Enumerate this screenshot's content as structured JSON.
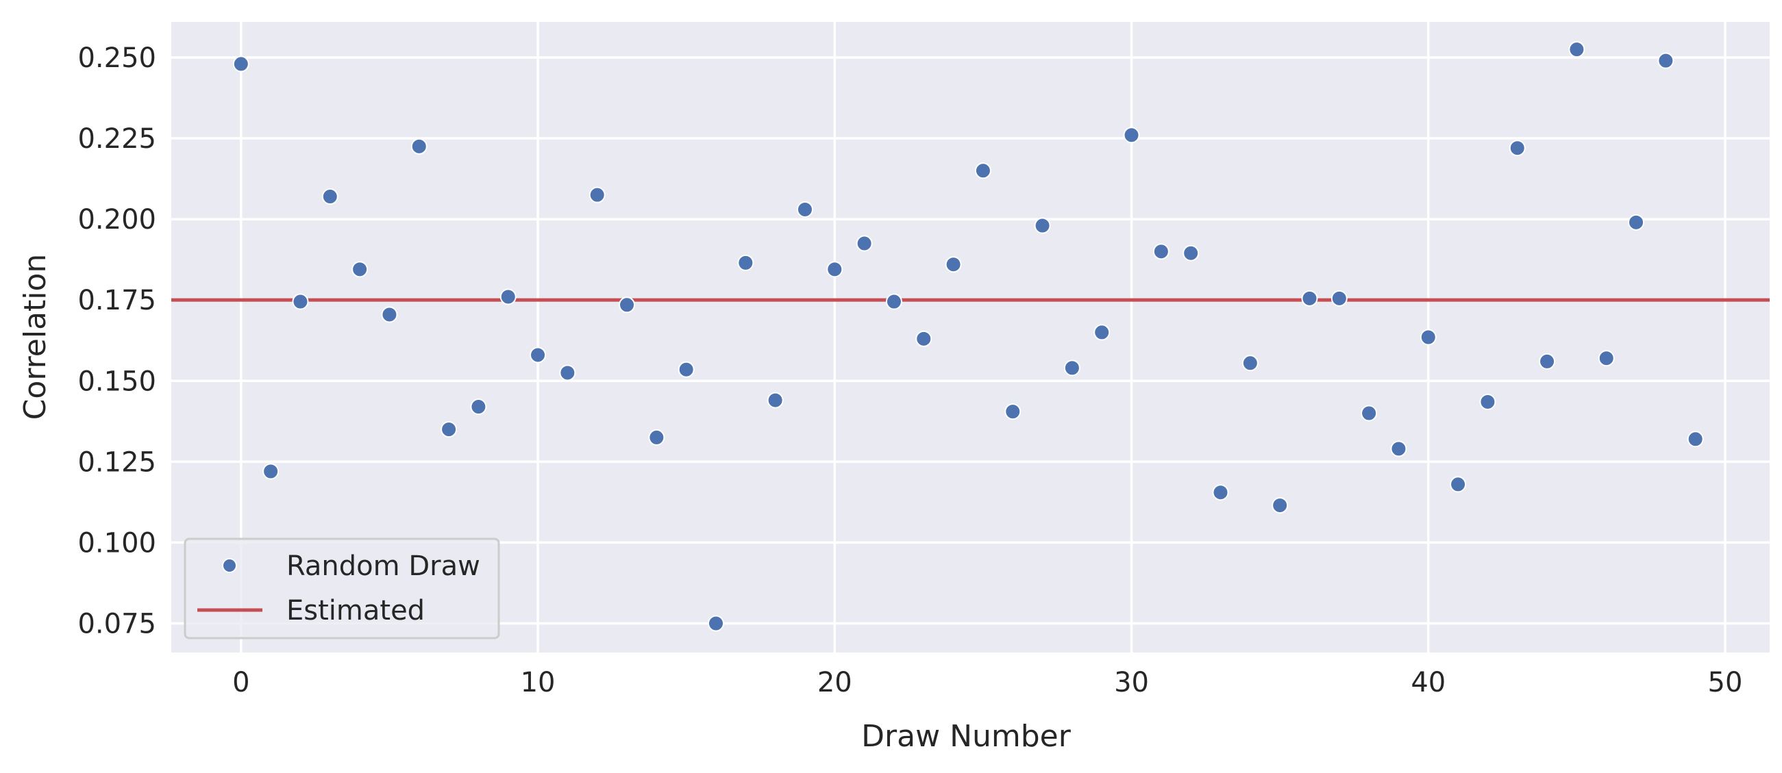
{
  "chart_data": {
    "type": "scatter",
    "title": "",
    "xlabel": "Draw Number",
    "ylabel": "Correlation",
    "xlim": [
      -2.35,
      51.5
    ],
    "ylim": [
      0.066,
      0.261
    ],
    "xticks": [
      0,
      10,
      20,
      30,
      40,
      50
    ],
    "xtick_labels": [
      "0",
      "10",
      "20",
      "30",
      "40",
      "50"
    ],
    "yticks": [
      0.075,
      0.1,
      0.125,
      0.15,
      0.175,
      0.2,
      0.225,
      0.25
    ],
    "ytick_labels": [
      "0.075",
      "0.100",
      "0.125",
      "0.150",
      "0.175",
      "0.200",
      "0.225",
      "0.250"
    ],
    "grid": true,
    "legend_position": "lower-left",
    "series": [
      {
        "name": "Random Draw",
        "kind": "scatter",
        "color": "#4c72b0",
        "x": [
          0,
          1,
          2,
          3,
          4,
          5,
          6,
          7,
          8,
          9,
          10,
          11,
          12,
          13,
          14,
          15,
          16,
          17,
          18,
          19,
          20,
          21,
          22,
          23,
          24,
          25,
          26,
          27,
          28,
          29,
          30,
          31,
          32,
          33,
          34,
          35,
          36,
          37,
          38,
          39,
          40,
          41,
          42,
          43,
          44,
          45,
          46,
          47,
          48,
          49
        ],
        "y": [
          0.248,
          0.122,
          0.1745,
          0.207,
          0.1845,
          0.1705,
          0.2225,
          0.135,
          0.142,
          0.176,
          0.158,
          0.1525,
          0.2075,
          0.1735,
          0.1325,
          0.1535,
          0.075,
          0.1865,
          0.144,
          0.203,
          0.1845,
          0.1925,
          0.1745,
          0.163,
          0.186,
          0.215,
          0.1405,
          0.198,
          0.154,
          0.165,
          0.226,
          0.19,
          0.1895,
          0.1155,
          0.1555,
          0.1115,
          0.1755,
          0.1755,
          0.14,
          0.129,
          0.1635,
          0.118,
          0.1435,
          0.222,
          0.156,
          0.2525,
          0.157,
          0.199,
          0.249,
          0.132
        ]
      },
      {
        "name": "Estimated",
        "kind": "hline",
        "color": "#c44e52",
        "y": 0.175
      }
    ]
  }
}
